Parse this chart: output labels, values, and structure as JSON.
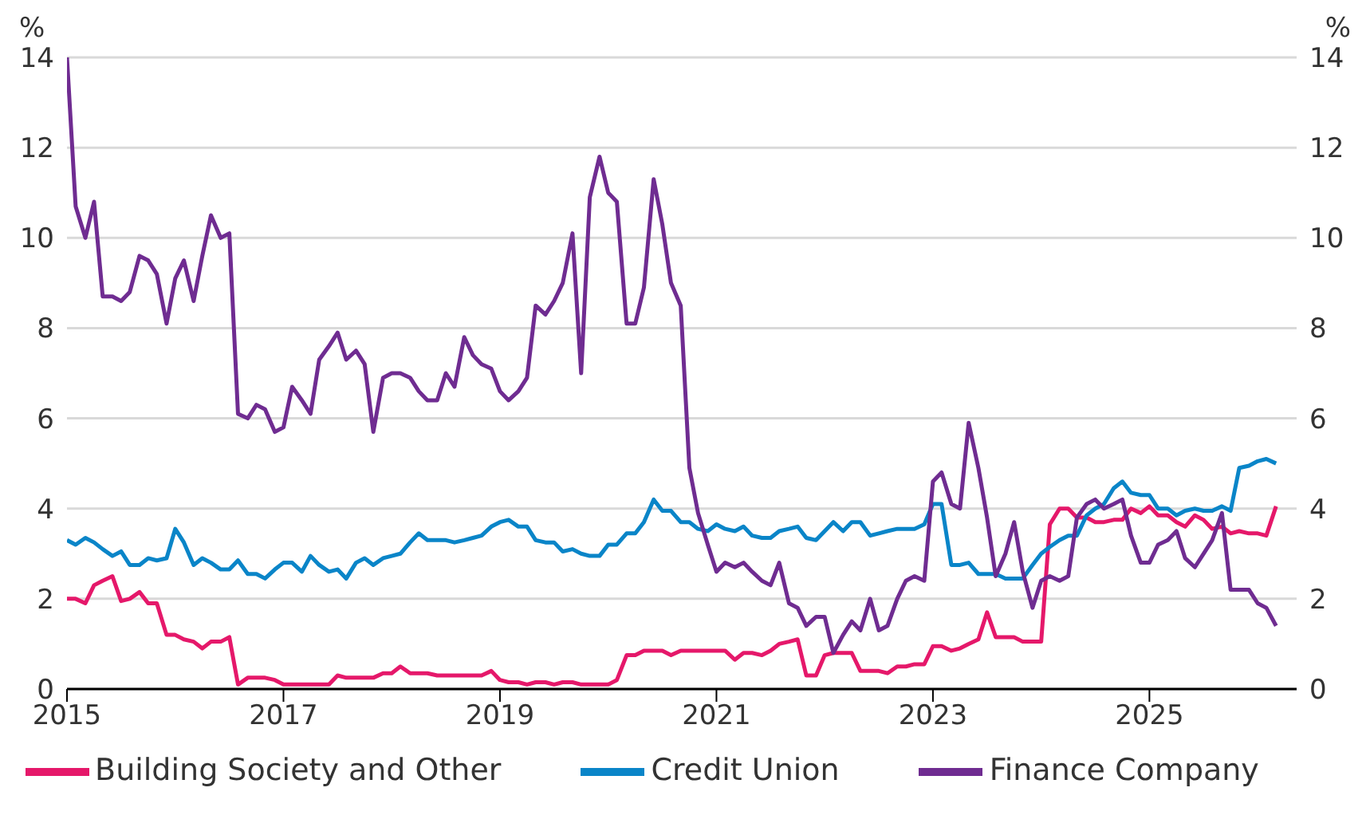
{
  "chart_data": {
    "type": "line",
    "ylabel": "%",
    "y2label": "%",
    "x": [
      2015,
      2015.08,
      2015.17,
      2015.25,
      2015.33,
      2015.42,
      2015.5,
      2015.58,
      2015.67,
      2015.75,
      2015.83,
      2015.92,
      2016,
      2016.08,
      2016.17,
      2016.25,
      2016.33,
      2016.42,
      2016.5,
      2016.58,
      2016.67,
      2016.75,
      2016.83,
      2016.92,
      2017,
      2017.08,
      2017.17,
      2017.25,
      2017.33,
      2017.42,
      2017.5,
      2017.58,
      2017.67,
      2017.75,
      2017.83,
      2017.92,
      2018,
      2018.08,
      2018.17,
      2018.25,
      2018.33,
      2018.42,
      2018.5,
      2018.58,
      2018.67,
      2018.75,
      2018.83,
      2018.92,
      2019,
      2019.08,
      2019.17,
      2019.25,
      2019.33,
      2019.42,
      2019.5,
      2019.58,
      2019.67,
      2019.75,
      2019.83,
      2019.92,
      2020,
      2020.08,
      2020.17,
      2020.25,
      2020.33,
      2020.42,
      2020.5,
      2020.58,
      2020.67,
      2020.75,
      2020.83,
      2020.92,
      2021,
      2021.08,
      2021.17,
      2021.25,
      2021.33,
      2021.42,
      2021.5,
      2021.58,
      2021.67,
      2021.75,
      2021.83,
      2021.92,
      2022,
      2022.08,
      2022.17,
      2022.25,
      2022.33,
      2022.42,
      2022.5,
      2022.58,
      2022.67,
      2022.75,
      2022.83,
      2022.92,
      2023,
      2023.08,
      2023.17,
      2023.25,
      2023.33,
      2023.42,
      2023.5,
      2023.58,
      2023.67,
      2023.75,
      2023.83,
      2023.92,
      2024,
      2024.08,
      2024.17,
      2024.25,
      2024.33,
      2024.42,
      2024.5,
      2024.58,
      2024.67,
      2024.75,
      2024.83,
      2024.92,
      2025,
      2025.08,
      2025.17,
      2025.25,
      2025.33,
      2025.42,
      2025.5,
      2025.58,
      2025.67,
      2025.75,
      2025.83,
      2025.92,
      2026,
      2026.08,
      2026.17
    ],
    "series": [
      {
        "name": "Building Society and Other",
        "color": "#e5186a",
        "values": [
          2.0,
          2.0,
          1.9,
          2.3,
          2.4,
          2.5,
          1.95,
          2.0,
          2.15,
          1.9,
          1.9,
          1.2,
          1.2,
          1.1,
          1.05,
          0.9,
          1.05,
          1.05,
          1.15,
          0.1,
          0.25,
          0.25,
          0.25,
          0.2,
          0.1,
          0.1,
          0.1,
          0.1,
          0.1,
          0.1,
          0.3,
          0.25,
          0.25,
          0.25,
          0.25,
          0.35,
          0.35,
          0.5,
          0.35,
          0.35,
          0.35,
          0.3,
          0.3,
          0.3,
          0.3,
          0.3,
          0.3,
          0.4,
          0.2,
          0.15,
          0.15,
          0.1,
          0.15,
          0.15,
          0.1,
          0.15,
          0.15,
          0.1,
          0.1,
          0.1,
          0.1,
          0.2,
          0.75,
          0.75,
          0.85,
          0.85,
          0.85,
          0.75,
          0.85,
          0.85,
          0.85,
          0.85,
          0.85,
          0.85,
          0.65,
          0.8,
          0.8,
          0.75,
          0.85,
          1.0,
          1.05,
          1.1,
          0.3,
          0.3,
          0.75,
          0.8,
          0.8,
          0.8,
          0.4,
          0.4,
          0.4,
          0.35,
          0.5,
          0.5,
          0.55,
          0.55,
          0.95,
          0.95,
          0.85,
          0.9,
          1.0,
          1.1,
          1.7,
          1.15,
          1.15,
          1.15,
          1.05,
          1.05,
          1.05,
          3.65,
          4.0,
          4.0,
          3.8,
          3.8,
          3.7,
          3.7,
          3.75,
          3.75,
          4.0,
          3.9,
          4.05,
          3.85,
          3.85,
          3.7,
          3.6,
          3.85,
          3.75,
          3.55,
          3.6,
          3.45,
          3.5,
          3.45,
          3.45,
          3.4,
          4.05
        ]
      },
      {
        "name": "Credit Union",
        "color": "#0a85c8",
        "values": [
          3.3,
          3.2,
          3.35,
          3.25,
          3.1,
          2.95,
          3.05,
          2.75,
          2.75,
          2.9,
          2.85,
          2.9,
          3.55,
          3.25,
          2.75,
          2.9,
          2.8,
          2.65,
          2.65,
          2.85,
          2.55,
          2.55,
          2.45,
          2.65,
          2.8,
          2.8,
          2.6,
          2.95,
          2.75,
          2.6,
          2.65,
          2.45,
          2.8,
          2.9,
          2.75,
          2.9,
          2.95,
          3.0,
          3.25,
          3.45,
          3.3,
          3.3,
          3.3,
          3.25,
          3.3,
          3.35,
          3.4,
          3.6,
          3.7,
          3.75,
          3.6,
          3.6,
          3.3,
          3.25,
          3.25,
          3.05,
          3.1,
          3.0,
          2.95,
          2.95,
          3.2,
          3.2,
          3.45,
          3.45,
          3.7,
          4.2,
          3.95,
          3.95,
          3.7,
          3.7,
          3.55,
          3.5,
          3.65,
          3.55,
          3.5,
          3.6,
          3.4,
          3.35,
          3.35,
          3.5,
          3.55,
          3.6,
          3.35,
          3.3,
          3.5,
          3.7,
          3.5,
          3.7,
          3.7,
          3.4,
          3.45,
          3.5,
          3.55,
          3.55,
          3.55,
          3.65,
          4.1,
          4.1,
          2.75,
          2.75,
          2.8,
          2.55,
          2.55,
          2.55,
          2.45,
          2.45,
          2.45,
          2.75,
          3.0,
          3.15,
          3.3,
          3.4,
          3.4,
          3.85,
          4.0,
          4.1,
          4.45,
          4.6,
          4.35,
          4.3,
          4.3,
          4.0,
          4.0,
          3.85,
          3.95,
          4.0,
          3.95,
          3.95,
          4.05,
          3.95,
          4.9,
          4.95,
          5.05,
          5.1,
          5.0
        ]
      },
      {
        "name": "Finance Company",
        "color": "#6f2c91",
        "values": [
          14.0,
          10.7,
          10.0,
          10.8,
          8.7,
          8.7,
          8.6,
          8.8,
          9.6,
          9.5,
          9.2,
          8.1,
          9.1,
          9.5,
          8.6,
          9.6,
          10.5,
          10.0,
          10.1,
          6.1,
          6.0,
          6.3,
          6.2,
          5.7,
          5.8,
          6.7,
          6.4,
          6.1,
          7.3,
          7.6,
          7.9,
          7.3,
          7.5,
          7.2,
          5.7,
          6.9,
          7.0,
          7.0,
          6.9,
          6.6,
          6.4,
          6.4,
          7.0,
          6.7,
          7.8,
          7.4,
          7.2,
          7.1,
          6.6,
          6.4,
          6.6,
          6.9,
          8.5,
          8.3,
          8.6,
          9.0,
          10.1,
          7.0,
          10.9,
          11.8,
          11.0,
          10.8,
          8.1,
          8.1,
          8.9,
          11.3,
          10.3,
          9.0,
          8.5,
          4.9,
          3.9,
          3.2,
          2.6,
          2.8,
          2.7,
          2.8,
          2.6,
          2.4,
          2.3,
          2.8,
          1.9,
          1.8,
          1.4,
          1.6,
          1.6,
          0.8,
          1.2,
          1.5,
          1.3,
          2.0,
          1.3,
          1.4,
          2.0,
          2.4,
          2.5,
          2.4,
          4.6,
          4.8,
          4.1,
          4.0,
          5.9,
          4.9,
          3.8,
          2.5,
          3.0,
          3.7,
          2.6,
          1.8,
          2.4,
          2.5,
          2.4,
          2.5,
          3.8,
          4.1,
          4.2,
          4.0,
          4.1,
          4.2,
          3.4,
          2.8,
          2.8,
          3.2,
          3.3,
          3.5,
          2.9,
          2.7,
          3.0,
          3.3,
          3.9,
          2.2,
          2.2,
          2.2,
          1.9,
          1.8,
          1.4
        ]
      }
    ],
    "xlim": [
      2015,
      2026.36
    ],
    "xticks": [
      2015,
      2017,
      2019,
      2021,
      2023,
      2025
    ],
    "ylim": [
      0,
      14
    ],
    "yticks": [
      0,
      2,
      4,
      6,
      8,
      10,
      12,
      14
    ],
    "y2lim": [
      0,
      14
    ],
    "y2ticks": [
      0,
      2,
      4,
      6,
      8,
      10,
      12,
      14
    ],
    "grid": "y",
    "legend": "bottom",
    "marker": "none",
    "line_style": "solid"
  }
}
